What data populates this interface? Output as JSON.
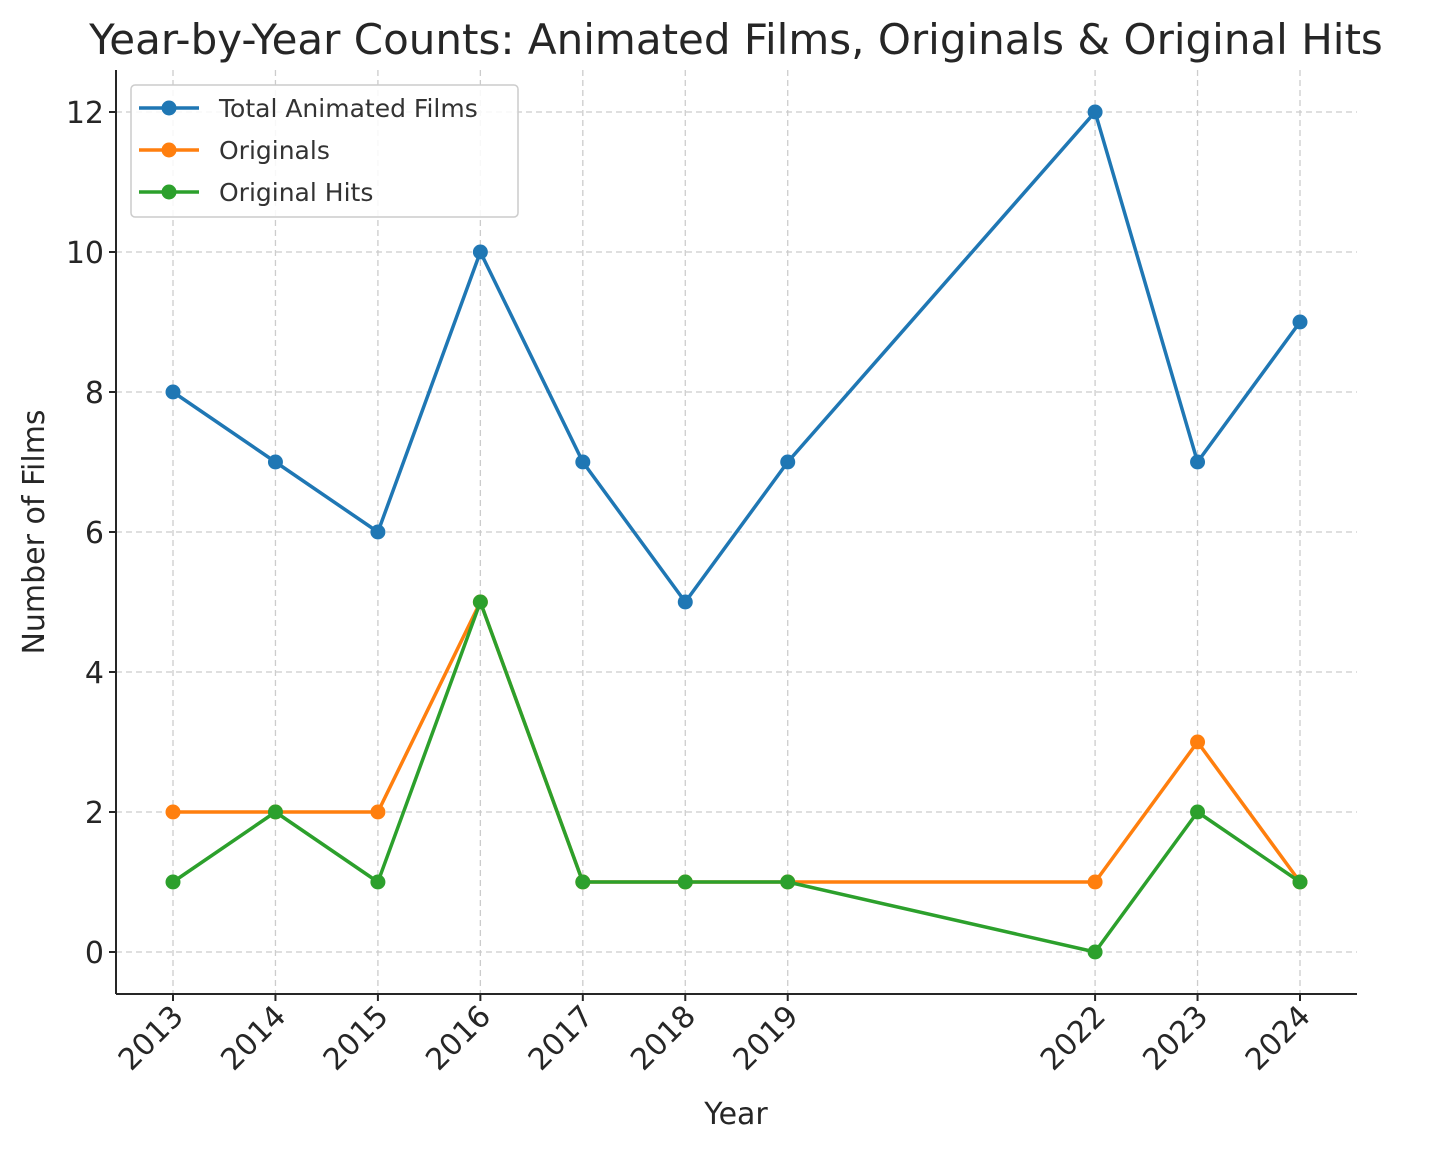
{
  "chart_data": {
    "type": "line",
    "title": "Year-by-Year Counts: Animated Films, Originals & Original Hits",
    "xlabel": "Year",
    "ylabel": "Number of Films",
    "x": [
      2013,
      2014,
      2015,
      2016,
      2017,
      2018,
      2019,
      2022,
      2023,
      2024
    ],
    "x_tick_labels": [
      "2013",
      "2014",
      "2015",
      "2016",
      "2017",
      "2018",
      "2019",
      "2022",
      "2023",
      "2024"
    ],
    "y_ticks": [
      0,
      2,
      4,
      6,
      8,
      10,
      12
    ],
    "ylim": [
      -0.6,
      12.6
    ],
    "grid": true,
    "legend_position": "upper left",
    "series": [
      {
        "name": "Total Animated Films",
        "color": "#1f77b4",
        "values": [
          8,
          7,
          6,
          10,
          7,
          5,
          7,
          12,
          7,
          9
        ]
      },
      {
        "name": "Originals",
        "color": "#ff7f0e",
        "values": [
          2,
          2,
          2,
          5,
          1,
          1,
          1,
          1,
          3,
          1
        ]
      },
      {
        "name": "Original Hits",
        "color": "#2ca02c",
        "values": [
          1,
          2,
          1,
          5,
          1,
          1,
          1,
          0,
          2,
          1
        ]
      }
    ]
  }
}
